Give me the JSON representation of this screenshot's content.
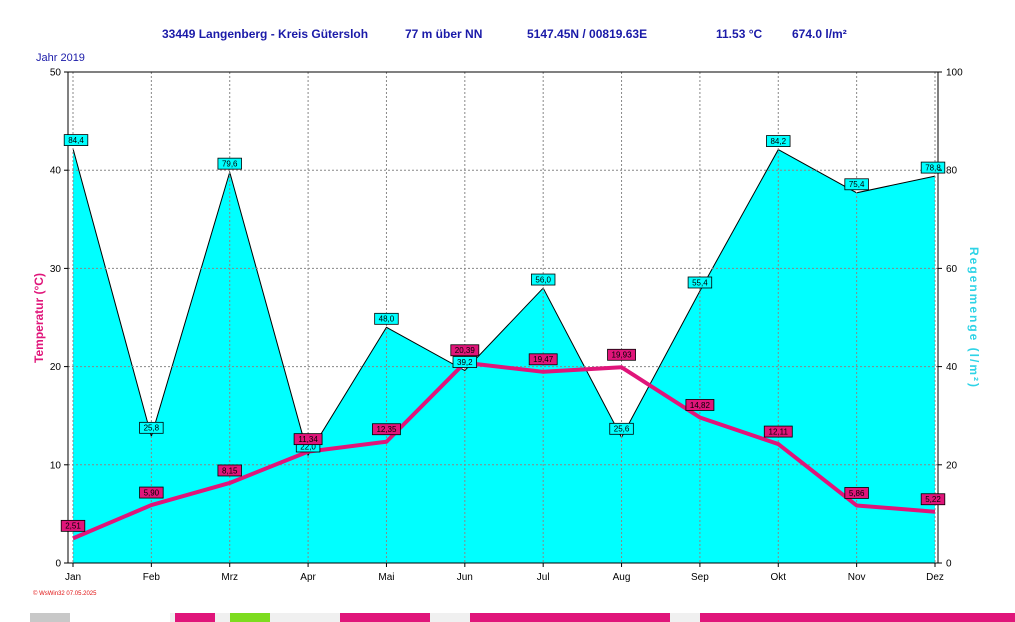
{
  "header": {
    "station": "33449 Langenberg - Kreis Gütersloh",
    "elevation": "77 m über NN",
    "coords": "5147.45N / 00819.63E",
    "mean_temp": "11.53 °C",
    "total_rain": "674.0 l/m²",
    "year": "Jahr  2019"
  },
  "footer": {
    "copyright": "© WsWin32  07.05.2025"
  },
  "colors": {
    "temp": "#e0157a",
    "rain_fill": "#00ffff",
    "rain_label": "#2ed3e6",
    "header": "#1a1aa8",
    "grid": "#888888"
  },
  "chart_data": {
    "type": "line+area",
    "categories": [
      "Jan",
      "Feb",
      "Mrz",
      "Apr",
      "Mai",
      "Jun",
      "Jul",
      "Aug",
      "Sep",
      "Okt",
      "Nov",
      "Dez"
    ],
    "series": [
      {
        "name": "Temperatur (°C)",
        "axis": "left",
        "type": "line",
        "values": [
          2.51,
          5.9,
          8.15,
          11.34,
          12.35,
          20.39,
          19.47,
          19.93,
          14.82,
          12.11,
          5.86,
          5.22
        ],
        "labels": [
          "2,51",
          "5,90",
          "8,15",
          "11,34",
          "12,35",
          "20,39",
          "19,47",
          "19,93",
          "14,82",
          "12,11",
          "5,86",
          "5,22"
        ]
      },
      {
        "name": "Regenmenge (l/m²)",
        "axis": "right",
        "type": "area",
        "values": [
          84.4,
          25.8,
          79.6,
          22.0,
          48.0,
          39.2,
          56.0,
          25.6,
          55.4,
          84.2,
          75.4,
          78.8
        ],
        "labels": [
          "84,4",
          "25,8",
          "79,6",
          "22,0",
          "48,0",
          "39,2",
          "56,0",
          "25,6",
          "55,4",
          "84,2",
          "75,4",
          "78,8"
        ]
      }
    ],
    "ylabel_left": "Temperatur  (°C)",
    "ylabel_right": "Regenmenge   (l/m²)",
    "ylim_left": [
      0,
      50
    ],
    "ylim_right": [
      0,
      100
    ],
    "yticks_left": [
      "0",
      "10",
      "20",
      "30",
      "40",
      "50"
    ],
    "yticks_right": [
      "0",
      "20",
      "40",
      "60",
      "80",
      "100"
    ],
    "grid": true
  }
}
